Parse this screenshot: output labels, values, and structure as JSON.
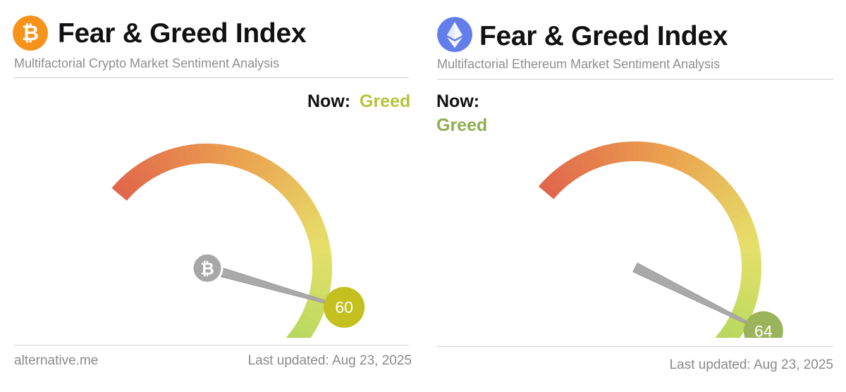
{
  "panels": [
    {
      "title": "Fear & Greed Index",
      "subtitle": "Multifactorial Crypto Market Sentiment Analysis",
      "logo_icon": "bitcoin-icon",
      "logo_color": "#f7931a",
      "now_label": "Now:",
      "now_value": "Greed",
      "now_color": "#b7c33a",
      "footer_left": "alternative.me",
      "footer_right": "Last updated: Aug 23, 2025"
    },
    {
      "title": "Fear & Greed Index",
      "subtitle": "Multifactorial Ethereum Market Sentiment Analysis",
      "logo_icon": "ethereum-icon",
      "logo_color": "#627eea",
      "now_label": "Now:",
      "now_value": "Greed",
      "now_color": "#8fae4f",
      "footer_left": "",
      "footer_right": "Last updated: Aug 23, 2025"
    }
  ],
  "chart_data": [
    {
      "type": "gauge",
      "title": "Fear & Greed Index",
      "value": 60,
      "range": [
        0,
        100
      ],
      "classification": "Greed",
      "badge_color": "#c3c020",
      "hub_icon": "bitcoin-icon"
    },
    {
      "type": "gauge",
      "title": "Fear & Greed Index",
      "value": 64,
      "range": [
        0,
        100
      ],
      "classification": "Greed",
      "badge_color": "#9bb35a",
      "hub_icon": ""
    }
  ]
}
